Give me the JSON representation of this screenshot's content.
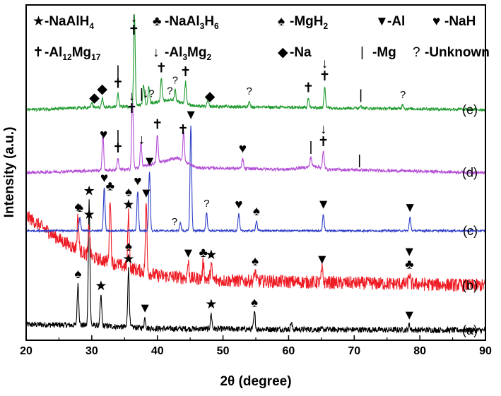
{
  "chart_data": {
    "type": "line",
    "xlabel": "2θ (degree)",
    "ylabel": "Intensity (a.u.)",
    "xlim": [
      20,
      90
    ],
    "x_ticks": [
      "20",
      "30",
      "40",
      "50",
      "60",
      "70",
      "80",
      "90"
    ],
    "grid": false,
    "legend_position": "top",
    "legend": [
      {
        "symbol": "★",
        "text": "-NaAlH",
        "sub": "4"
      },
      {
        "symbol": "♣",
        "text": "-NaAl",
        "sub": "3",
        "text2": "H",
        "sub2": "6"
      },
      {
        "symbol": "♠",
        "text": "-MgH",
        "sub": "2"
      },
      {
        "symbol": "▼",
        "text": "-Al"
      },
      {
        "symbol": "♥",
        "text": "-NaH"
      },
      {
        "symbol": "✝",
        "text": "-Al",
        "sub": "12",
        "text2": "Mg",
        "sub2": "17"
      },
      {
        "symbol": "↓",
        "text": "-Al",
        "sub": "3",
        "text2": "Mg",
        "sub2": "2"
      },
      {
        "symbol": "◆",
        "text": "-Na"
      },
      {
        "symbol": "|",
        "text": "-Mg"
      },
      {
        "symbol": "?",
        "text": "-Unknown"
      }
    ],
    "series": [
      {
        "label": "(a)",
        "color": "#000000",
        "baseline": 0.6,
        "noise": 0.35,
        "background": [
          [
            20,
            0.35
          ],
          [
            30,
            0.3
          ],
          [
            40,
            0.1
          ],
          [
            90,
            0
          ]
        ],
        "peaks": [
          [
            27.9,
            2.5
          ],
          [
            29.6,
            7.5
          ],
          [
            31.4,
            1.8
          ],
          [
            35.6,
            3.5
          ],
          [
            38.1,
            0.6
          ],
          [
            48.2,
            0.9
          ],
          [
            54.8,
            1.0
          ],
          [
            60.4,
            0.4
          ],
          [
            78.4,
            0.3
          ]
        ],
        "markers": [
          {
            "x": 27.9,
            "dy": 0,
            "s": "♠"
          },
          {
            "x": 29.6,
            "dy": 0,
            "s": "★"
          },
          {
            "x": 31.4,
            "dy": 0,
            "s": "★"
          },
          {
            "x": 35.6,
            "dy": 0,
            "s": "★"
          },
          {
            "x": 35.6,
            "dy": 1,
            "s": "♠"
          },
          {
            "x": 38.1,
            "dy": 0,
            "s": "▼"
          },
          {
            "x": 48.2,
            "dy": 0,
            "s": "★"
          },
          {
            "x": 54.8,
            "dy": 0,
            "s": "♠"
          },
          {
            "x": 78.4,
            "dy": 0,
            "s": "▼"
          }
        ]
      },
      {
        "label": "(b)",
        "color": "#ee1b24",
        "baseline": 3.3,
        "noise": 0.8,
        "background": [
          [
            20,
            4.2
          ],
          [
            25,
            2.8
          ],
          [
            30,
            1.7
          ],
          [
            40,
            0.6
          ],
          [
            50,
            0.3
          ],
          [
            90,
            0
          ]
        ],
        "peaks": [
          [
            27.9,
            2.0
          ],
          [
            29.6,
            1.9
          ],
          [
            32.8,
            4.0
          ],
          [
            35.6,
            3.2
          ],
          [
            38.3,
            4.2
          ],
          [
            44.7,
            0.9
          ],
          [
            47.0,
            1.0
          ],
          [
            48.2,
            0.9
          ],
          [
            54.9,
            0.6
          ],
          [
            65.1,
            0.8
          ],
          [
            78.4,
            0.6
          ]
        ],
        "markers": [
          {
            "x": 27.9,
            "dy": 0,
            "s": "♠"
          },
          {
            "x": 29.6,
            "dy": 0,
            "s": "★"
          },
          {
            "x": 32.8,
            "dy": 0,
            "s": "♣"
          },
          {
            "x": 35.6,
            "dy": 0,
            "s": "★"
          },
          {
            "x": 35.6,
            "dy": 1,
            "s": "♠"
          },
          {
            "x": 38.3,
            "dy": 0,
            "s": "▼"
          },
          {
            "x": 44.7,
            "dy": 0,
            "s": "▼"
          },
          {
            "x": 47.0,
            "dy": 0,
            "s": "♣"
          },
          {
            "x": 48.2,
            "dy": 0,
            "s": "★"
          },
          {
            "x": 54.9,
            "dy": 0,
            "s": "♠"
          },
          {
            "x": 65.1,
            "dy": 0,
            "s": "▼"
          },
          {
            "x": 78.4,
            "dy": 0,
            "s": "♣"
          },
          {
            "x": 78.4,
            "dy": 1,
            "s": "▼"
          }
        ]
      },
      {
        "label": "(c)",
        "color": "#2e3ec7",
        "baseline": 6.6,
        "noise": 0.12,
        "background": [
          [
            20,
            0
          ],
          [
            90,
            0
          ]
        ],
        "peaks": [
          [
            28.2,
            0.8
          ],
          [
            31.9,
            2.6
          ],
          [
            37.0,
            2.4
          ],
          [
            38.8,
            3.6
          ],
          [
            43.5,
            0.5
          ],
          [
            45.1,
            6.4
          ],
          [
            47.5,
            1.1
          ],
          [
            52.4,
            1.0
          ],
          [
            55.1,
            0.6
          ],
          [
            65.3,
            1.0
          ],
          [
            78.5,
            0.8
          ]
        ],
        "markers": [
          {
            "x": 28.2,
            "dy": 0,
            "s": "♠"
          },
          {
            "x": 31.9,
            "dy": 0,
            "s": "♥"
          },
          {
            "x": 37.0,
            "dy": 0,
            "s": "♥"
          },
          {
            "x": 38.8,
            "dy": 0,
            "s": "▼"
          },
          {
            "x": 42.6,
            "dy": 0,
            "s": "?"
          },
          {
            "x": 45.1,
            "dy": 0,
            "s": "▼"
          },
          {
            "x": 47.5,
            "dy": 0,
            "s": "?"
          },
          {
            "x": 52.4,
            "dy": 0,
            "s": "♥"
          },
          {
            "x": 55.1,
            "dy": 0,
            "s": "♠"
          },
          {
            "x": 65.3,
            "dy": 0,
            "s": "▼"
          },
          {
            "x": 78.5,
            "dy": 0,
            "s": "▼"
          }
        ]
      },
      {
        "label": "(d)",
        "color": "#b44fd6",
        "baseline": 10.1,
        "noise": 0.18,
        "background": [
          [
            20,
            0
          ],
          [
            36,
            0.2
          ],
          [
            43,
            0.9
          ],
          [
            46,
            0.3
          ],
          [
            60,
            0.2
          ],
          [
            64,
            0.4
          ],
          [
            66,
            0.2
          ],
          [
            90,
            0
          ]
        ],
        "peaks": [
          [
            31.7,
            2.2
          ],
          [
            34.0,
            0.7
          ],
          [
            36.2,
            4.3
          ],
          [
            37.5,
            1.5
          ],
          [
            40.0,
            1.7
          ],
          [
            44.0,
            1.8
          ],
          [
            53.0,
            0.6
          ],
          [
            63.4,
            0.6
          ],
          [
            65.3,
            1.0
          ]
        ],
        "markers": [
          {
            "x": 31.8,
            "dy": 0,
            "s": "♥"
          },
          {
            "x": 34.0,
            "dy": 0,
            "s": "✝"
          },
          {
            "x": 34.0,
            "dy": 1,
            "s": "|"
          },
          {
            "x": 36.1,
            "dy": 0,
            "s": "✝"
          },
          {
            "x": 36.1,
            "dy": 1,
            "s": "↓"
          },
          {
            "x": 37.6,
            "dy": 0,
            "s": "↓"
          },
          {
            "x": 40.0,
            "dy": 0,
            "s": "✝"
          },
          {
            "x": 43.9,
            "dy": 0,
            "s": "✝"
          },
          {
            "x": 53.0,
            "dy": 0,
            "s": "♥"
          },
          {
            "x": 63.4,
            "dy": 0,
            "s": "|"
          },
          {
            "x": 65.3,
            "dy": 0,
            "s": "✝"
          },
          {
            "x": 65.3,
            "dy": 1,
            "s": "↓"
          },
          {
            "x": 70.8,
            "dy": 0,
            "s": "|"
          }
        ]
      },
      {
        "label": "(e)",
        "color": "#1f9a2e",
        "baseline": 13.9,
        "noise": 0.18,
        "background": [
          [
            20,
            0
          ],
          [
            36,
            0.2
          ],
          [
            42,
            0.6
          ],
          [
            46,
            0.2
          ],
          [
            90,
            0
          ]
        ],
        "peaks": [
          [
            30.0,
            0.3
          ],
          [
            31.6,
            0.5
          ],
          [
            34.0,
            0.8
          ],
          [
            36.5,
            5.6
          ],
          [
            37.9,
            1.2
          ],
          [
            38.7,
            1.0
          ],
          [
            40.6,
            1.4
          ],
          [
            42.7,
            0.7
          ],
          [
            44.3,
            1.3
          ],
          [
            47.7,
            0.4
          ],
          [
            54.0,
            0.4
          ],
          [
            63.0,
            0.6
          ],
          [
            65.5,
            1.3
          ],
          [
            71.0,
            0.2
          ],
          [
            77.4,
            0.3
          ]
        ],
        "markers": [
          {
            "x": 30.4,
            "dy": 0,
            "s": "◆"
          },
          {
            "x": 31.6,
            "dy": 0,
            "s": "◆"
          },
          {
            "x": 34.0,
            "dy": 0,
            "s": "✝"
          },
          {
            "x": 34.0,
            "dy": 1,
            "s": "|"
          },
          {
            "x": 36.4,
            "dy": 0,
            "s": "✝"
          },
          {
            "x": 36.4,
            "dy": 1,
            "s": "↓"
          },
          {
            "x": 37.6,
            "dy": 0,
            "s": "|"
          },
          {
            "x": 38.2,
            "dy": 0,
            "s": "↓"
          },
          {
            "x": 39.1,
            "dy": 0,
            "s": "?"
          },
          {
            "x": 40.6,
            "dy": 0,
            "s": "✝"
          },
          {
            "x": 41.9,
            "dy": 0,
            "s": "?"
          },
          {
            "x": 42.7,
            "dy": 0,
            "s": "?"
          },
          {
            "x": 44.3,
            "dy": 0,
            "s": "✝"
          },
          {
            "x": 48.0,
            "dy": 0,
            "s": "◆"
          },
          {
            "x": 54.0,
            "dy": 0,
            "s": "?"
          },
          {
            "x": 63.0,
            "dy": 0,
            "s": "✝"
          },
          {
            "x": 65.5,
            "dy": 0,
            "s": "✝"
          },
          {
            "x": 65.5,
            "dy": 1,
            "s": "↓"
          },
          {
            "x": 71.0,
            "dy": 0,
            "s": "|"
          },
          {
            "x": 77.4,
            "dy": 0,
            "s": "?"
          }
        ]
      }
    ]
  }
}
